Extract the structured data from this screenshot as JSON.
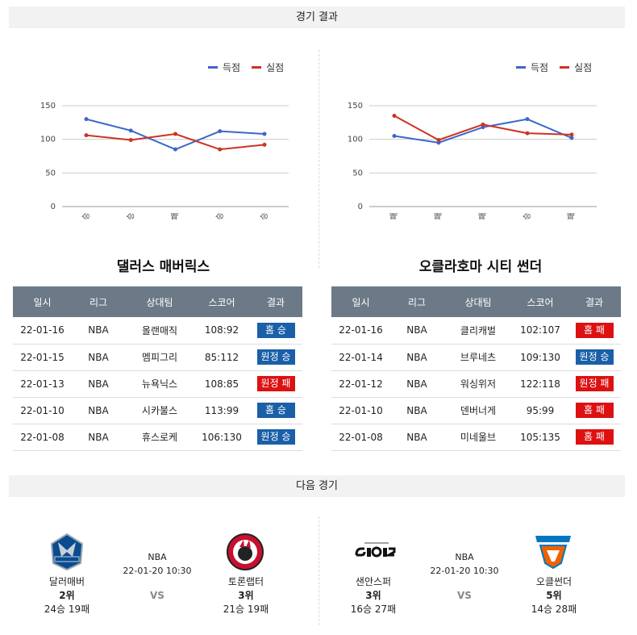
{
  "header": {
    "results_title": "경기 결과",
    "next_title": "다음 경기"
  },
  "legend": {
    "scored": "득점",
    "conceded": "실점",
    "scored_color": "#3a67c9",
    "conceded_color": "#cc3322"
  },
  "chart_data": [
    {
      "type": "line",
      "categories": [
        "승",
        "승",
        "패",
        "승",
        "승"
      ],
      "series": [
        {
          "name": "득점",
          "values": [
            130,
            113,
            85,
            112,
            108
          ]
        },
        {
          "name": "실점",
          "values": [
            106,
            99,
            108,
            85,
            92
          ]
        }
      ],
      "yticks": [
        0,
        50,
        100,
        150
      ],
      "ylim": [
        0,
        150
      ],
      "legend": "top-right",
      "grid": true
    },
    {
      "type": "line",
      "categories": [
        "패",
        "패",
        "패",
        "승",
        "패"
      ],
      "series": [
        {
          "name": "득점",
          "values": [
            105,
            95,
            118,
            130,
            102
          ]
        },
        {
          "name": "실점",
          "values": [
            135,
            99,
            122,
            109,
            107
          ]
        }
      ],
      "yticks": [
        0,
        50,
        100,
        150
      ],
      "ylim": [
        0,
        150
      ],
      "legend": "top-right",
      "grid": true
    }
  ],
  "left_team": {
    "title": "댈러스 매버릭스",
    "columns": [
      "일시",
      "리그",
      "상대팀",
      "스코어",
      "결과"
    ],
    "rows": [
      {
        "date": "22-01-16",
        "league": "NBA",
        "opponent": "올랜매직",
        "score": "108:92",
        "result": "홈 승",
        "color": "#1a5fa8"
      },
      {
        "date": "22-01-15",
        "league": "NBA",
        "opponent": "멤피그리",
        "score": "85:112",
        "result": "원정 승",
        "color": "#1a5fa8"
      },
      {
        "date": "22-01-13",
        "league": "NBA",
        "opponent": "뉴욕닉스",
        "score": "108:85",
        "result": "원정 패",
        "color": "#dd1111"
      },
      {
        "date": "22-01-10",
        "league": "NBA",
        "opponent": "시카불스",
        "score": "113:99",
        "result": "홈 승",
        "color": "#1a5fa8"
      },
      {
        "date": "22-01-08",
        "league": "NBA",
        "opponent": "휴스로케",
        "score": "106:130",
        "result": "원정 승",
        "color": "#1a5fa8"
      }
    ]
  },
  "right_team": {
    "title": "오클라호마 시티 썬더",
    "columns": [
      "일시",
      "리그",
      "상대팀",
      "스코어",
      "결과"
    ],
    "rows": [
      {
        "date": "22-01-16",
        "league": "NBA",
        "opponent": "클리캐벌",
        "score": "102:107",
        "result": "홈 패",
        "color": "#dd1111"
      },
      {
        "date": "22-01-14",
        "league": "NBA",
        "opponent": "브루네츠",
        "score": "109:130",
        "result": "원정 승",
        "color": "#1a5fa8"
      },
      {
        "date": "22-01-12",
        "league": "NBA",
        "opponent": "워싱위저",
        "score": "122:118",
        "result": "원정 패",
        "color": "#dd1111"
      },
      {
        "date": "22-01-10",
        "league": "NBA",
        "opponent": "덴버너게",
        "score": "95:99",
        "result": "홈 패",
        "color": "#dd1111"
      },
      {
        "date": "22-01-08",
        "league": "NBA",
        "opponent": "미네울브",
        "score": "105:135",
        "result": "홈 패",
        "color": "#dd1111"
      }
    ]
  },
  "next_games": [
    {
      "league": "NBA",
      "datetime": "22-01-20 10:30",
      "vs": "VS",
      "home": {
        "name": "달러매버",
        "rank": "2위",
        "record": "24승 19패",
        "logo": "mavericks-logo"
      },
      "away": {
        "name": "토론랩터",
        "rank": "3위",
        "record": "21승 19패",
        "logo": "raptors-logo"
      }
    },
    {
      "league": "NBA",
      "datetime": "22-01-20 10:30",
      "vs": "VS",
      "home": {
        "name": "샌안스퍼",
        "rank": "3위",
        "record": "16승 27패",
        "logo": "spurs-logo"
      },
      "away": {
        "name": "오클썬더",
        "rank": "5위",
        "record": "14승 28패",
        "logo": "thunder-logo"
      }
    }
  ]
}
